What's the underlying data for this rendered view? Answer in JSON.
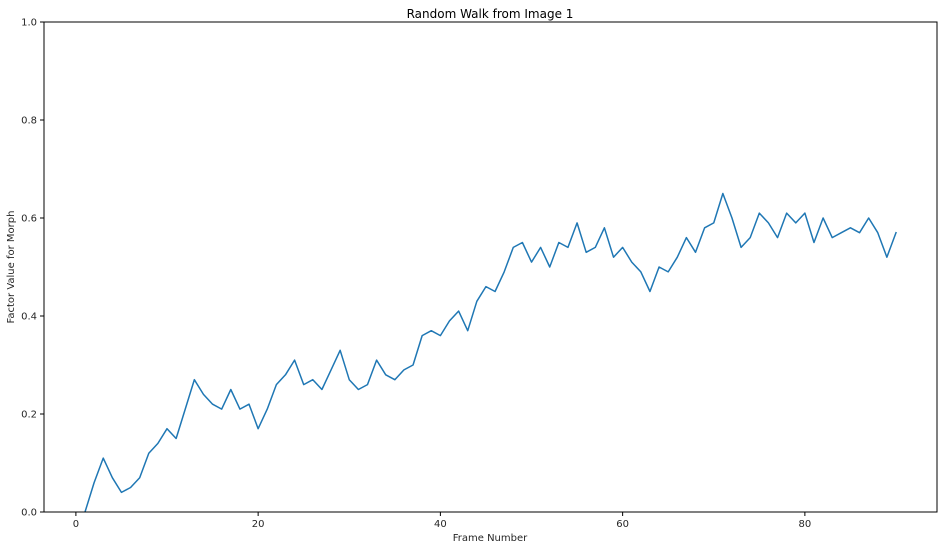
{
  "chart_data": {
    "type": "line",
    "title": "Random Walk from Image 1",
    "xlabel": "Frame Number",
    "ylabel": "Factor Value for Morph",
    "xlim": [
      -3.5,
      94.5
    ],
    "ylim": [
      0,
      1
    ],
    "xticks": [
      0,
      20,
      40,
      60,
      80
    ],
    "xtick_labels": [
      "0",
      "20",
      "40",
      "60",
      "80"
    ],
    "yticks": [
      0.0,
      0.2,
      0.4,
      0.6,
      0.8,
      1.0
    ],
    "ytick_labels": [
      "0.0",
      "0.2",
      "0.4",
      "0.6",
      "0.8",
      "1.0"
    ],
    "grid": false,
    "series": [
      {
        "color": "#1f77b4",
        "x": [
          0,
          1,
          2,
          3,
          4,
          5,
          6,
          7,
          8,
          9,
          10,
          11,
          12,
          13,
          14,
          15,
          16,
          17,
          18,
          19,
          20,
          21,
          22,
          23,
          24,
          25,
          26,
          27,
          28,
          29,
          30,
          31,
          32,
          33,
          34,
          35,
          36,
          37,
          38,
          39,
          40,
          41,
          42,
          43,
          44,
          45,
          46,
          47,
          48,
          49,
          50,
          51,
          52,
          53,
          54,
          55,
          56,
          57,
          58,
          59,
          60,
          61,
          62,
          63,
          64,
          65,
          66,
          67,
          68,
          69,
          70,
          71,
          72,
          73,
          74,
          75,
          76,
          77,
          78,
          79,
          80,
          81,
          82,
          83,
          84,
          85,
          86,
          87,
          88,
          89,
          90
        ],
        "y": [
          -0.03,
          0.0,
          0.06,
          0.11,
          0.07,
          0.04,
          0.05,
          0.07,
          0.12,
          0.14,
          0.17,
          0.15,
          0.21,
          0.27,
          0.24,
          0.22,
          0.21,
          0.25,
          0.21,
          0.22,
          0.17,
          0.21,
          0.26,
          0.28,
          0.31,
          0.26,
          0.27,
          0.25,
          0.29,
          0.33,
          0.27,
          0.25,
          0.26,
          0.31,
          0.28,
          0.27,
          0.29,
          0.3,
          0.36,
          0.37,
          0.36,
          0.39,
          0.41,
          0.37,
          0.43,
          0.46,
          0.45,
          0.49,
          0.54,
          0.55,
          0.51,
          0.54,
          0.5,
          0.55,
          0.54,
          0.59,
          0.53,
          0.54,
          0.58,
          0.52,
          0.54,
          0.51,
          0.49,
          0.45,
          0.5,
          0.49,
          0.52,
          0.56,
          0.53,
          0.58,
          0.59,
          0.65,
          0.6,
          0.54,
          0.56,
          0.61,
          0.59,
          0.56,
          0.61,
          0.59,
          0.61,
          0.55,
          0.6,
          0.56,
          0.57,
          0.58,
          0.57,
          0.6,
          0.57,
          0.52,
          0.57
        ]
      }
    ]
  }
}
